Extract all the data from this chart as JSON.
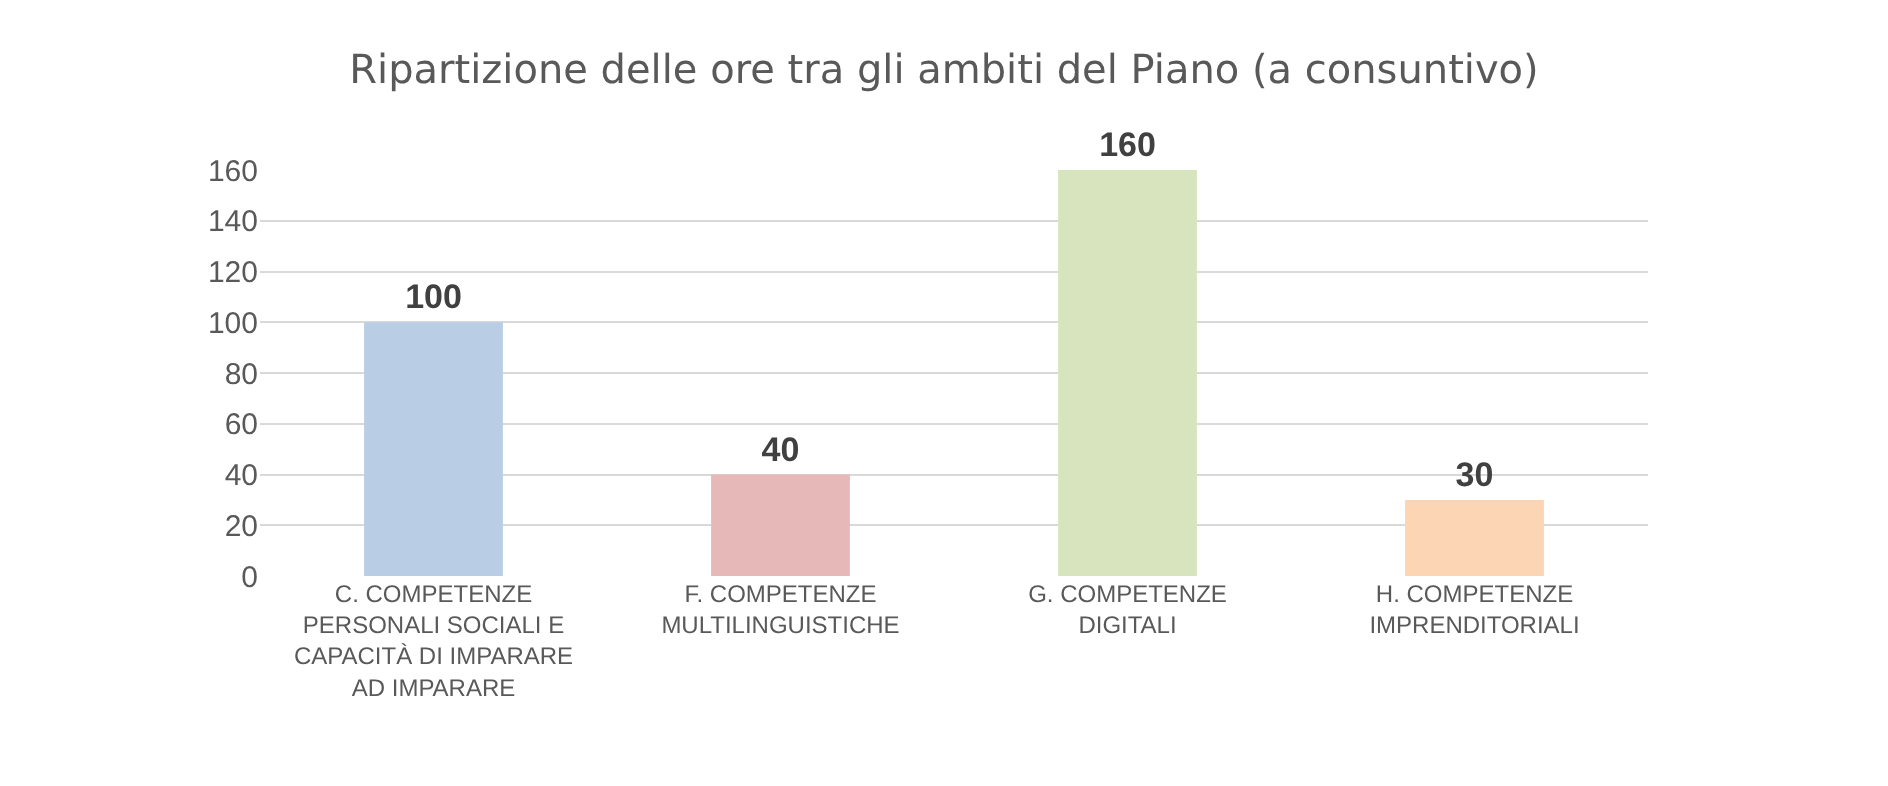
{
  "chart_data": {
    "type": "bar",
    "title": "Ripartizione delle ore tra gli ambiti del Piano (a consuntivo)",
    "categories": [
      "C. COMPETENZE PERSONALI SOCIALI E CAPACITÀ DI IMPARARE AD IMPARARE",
      "F. COMPETENZE MULTILINGUISTICHE",
      "G. COMPETENZE DIGITALI",
      "H. COMPETENZE IMPRENDITORIALI"
    ],
    "values": [
      100,
      40,
      160,
      30
    ],
    "colors": [
      "#b9cde5",
      "#e6b9b8",
      "#d7e4bd",
      "#fcd5b5"
    ],
    "ylim": [
      0,
      160
    ],
    "yticks": [
      0,
      20,
      40,
      60,
      80,
      100,
      120,
      140,
      160
    ],
    "grid": "y",
    "data_labels": true
  }
}
